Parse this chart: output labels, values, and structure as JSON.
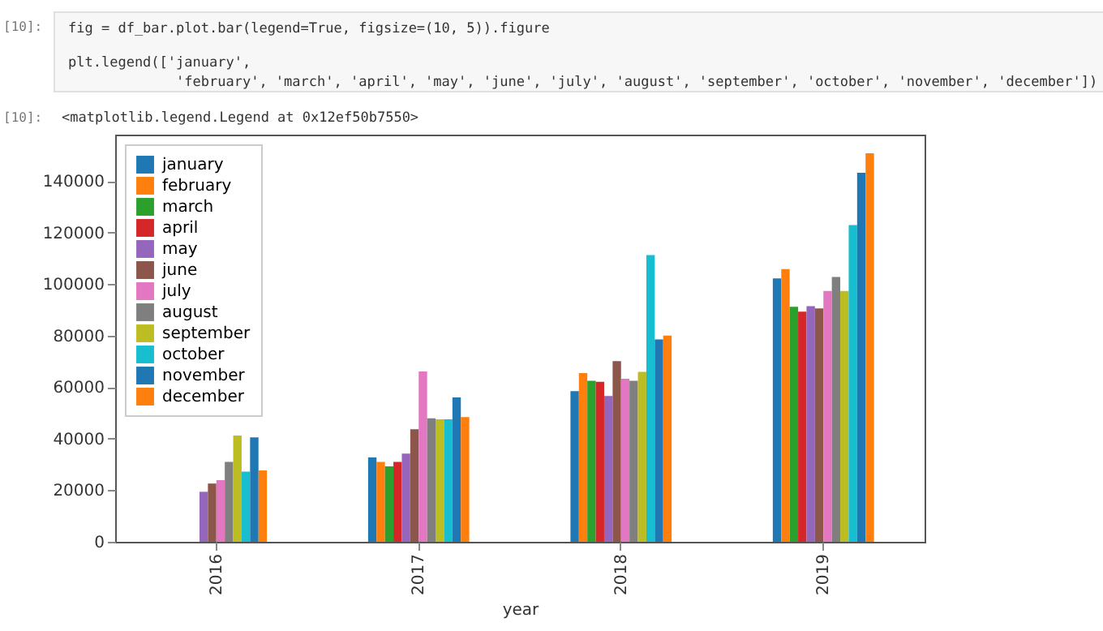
{
  "chart_data": {
    "type": "bar",
    "xlabel": "year",
    "categories": [
      "2016",
      "2017",
      "2018",
      "2019"
    ],
    "annotations": [
      "[10]:",
      "fig = df_bar.plot.bar(legend=True, figsize=(10, 5)).figure",
      "plt.legend(['january',",
      "             'february', 'march', 'april', 'may', 'june', 'july', 'august', 'september', 'october', 'november', 'december'])",
      "[10]:",
      "<matplotlib.legend.Legend at 0x12ef50b7550>"
    ],
    "series": [
      {
        "name": "january",
        "color": "#1f77b4",
        "values": [
          null,
          32700,
          58500,
          102200
        ]
      },
      {
        "name": "february",
        "color": "#ff7f0e",
        "values": [
          null,
          31000,
          65500,
          105800
        ]
      },
      {
        "name": "march",
        "color": "#2ca02c",
        "values": [
          null,
          29300,
          62500,
          91200
        ]
      },
      {
        "name": "april",
        "color": "#d62728",
        "values": [
          null,
          31000,
          62100,
          89300
        ]
      },
      {
        "name": "may",
        "color": "#9467bd",
        "values": [
          19400,
          34200,
          56600,
          91400
        ]
      },
      {
        "name": "june",
        "color": "#8c564b",
        "values": [
          22600,
          43700,
          70100,
          90600
        ]
      },
      {
        "name": "july",
        "color": "#e377c2",
        "values": [
          23900,
          66100,
          63300,
          97300
        ]
      },
      {
        "name": "august",
        "color": "#7f7f7f",
        "values": [
          31000,
          47900,
          62500,
          102800
        ]
      },
      {
        "name": "september",
        "color": "#bcbd22",
        "values": [
          41200,
          47500,
          65900,
          97300
        ]
      },
      {
        "name": "october",
        "color": "#17becf",
        "values": [
          27200,
          47500,
          111300,
          122900
        ]
      },
      {
        "name": "november",
        "color": "#1f77b4",
        "values": [
          40500,
          56000,
          78500,
          143200
        ]
      },
      {
        "name": "december",
        "color": "#ff7f0e",
        "values": [
          27700,
          48400,
          80000,
          150800
        ]
      }
    ],
    "ylim": [
      0,
      158000
    ],
    "yticks": [
      0,
      20000,
      40000,
      60000,
      80000,
      100000,
      120000,
      140000
    ],
    "grid": false,
    "legend": "top left"
  }
}
